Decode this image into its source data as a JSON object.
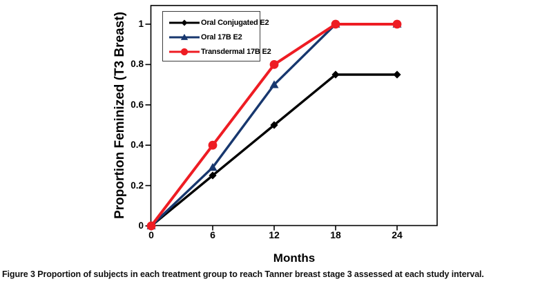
{
  "figure": {
    "caption_label": "Figure 3",
    "caption_text": "Proportion of subjects in each treatment group to reach Tanner breast stage 3 assessed at each study interval."
  },
  "chart_data": {
    "type": "line",
    "title": "",
    "xlabel": "Months",
    "ylabel": "Proportion Feminized (T3 Breast)",
    "x": [
      0,
      6,
      12,
      18,
      24
    ],
    "xticks": [
      0,
      6,
      12,
      18,
      24
    ],
    "xtick_labels": [
      "0",
      "6",
      "12",
      "18",
      "24"
    ],
    "yticks": [
      0,
      0.2,
      0.4,
      0.6,
      0.8,
      1
    ],
    "ytick_labels": [
      "0",
      "0.2",
      "0.4",
      "0.6",
      "0.8",
      "1"
    ],
    "xlim": [
      0,
      28
    ],
    "ylim": [
      0,
      1.09
    ],
    "grid": false,
    "legend_position": "top-left-inside",
    "series": [
      {
        "name": "Oral Conjugated E2",
        "color": "#000000",
        "marker": "diamond",
        "line_width": 3.4,
        "values": [
          0,
          0.25,
          0.5,
          0.75,
          0.75
        ]
      },
      {
        "name": "Oral 17B E2",
        "color": "#17376e",
        "marker": "triangle",
        "line_width": 3.4,
        "values": [
          0,
          0.29,
          0.7,
          1,
          1
        ]
      },
      {
        "name": "Transdermal 17B E2",
        "color": "#ee1c23",
        "marker": "circle",
        "line_width": 4,
        "values": [
          0,
          0.4,
          0.8,
          1,
          1
        ]
      }
    ]
  }
}
